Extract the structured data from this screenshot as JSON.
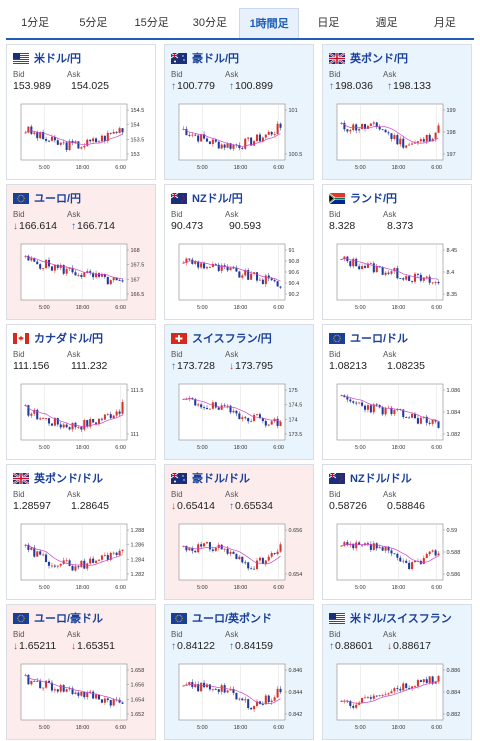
{
  "tabs": [
    {
      "label": "1分足",
      "active": false
    },
    {
      "label": "5分足",
      "active": false
    },
    {
      "label": "15分足",
      "active": false
    },
    {
      "label": "30分足",
      "active": false
    },
    {
      "label": "1時間足",
      "active": true
    },
    {
      "label": "日足",
      "active": false
    },
    {
      "label": "週足",
      "active": false
    },
    {
      "label": "月足",
      "active": false
    }
  ],
  "labels": {
    "bid": "Bid",
    "ask": "Ask"
  },
  "colors": {
    "up": "#1f66c9",
    "down": "#d9342b",
    "candle_up": "#d9342b",
    "candle_down": "#1e3a9a",
    "ma": "#cc44cc"
  },
  "cards": [
    {
      "name": "米ドル/円",
      "flag": "us-flag-icon",
      "bg": "white",
      "bid": "153.989",
      "ask": "154.025",
      "bid_dir": "",
      "ask_dir": "",
      "y_ticks": [
        "154.5",
        "154",
        "153.5",
        "153"
      ],
      "x_ticks": [
        "5:00",
        "18:00",
        "6:00"
      ],
      "trend": "dip-mid",
      "seed": 3
    },
    {
      "name": "豪ドル/円",
      "flag": "au-flag-icon",
      "bg": "blue",
      "bid": "100.779",
      "ask": "100.899",
      "bid_dir": "up",
      "ask_dir": "up",
      "y_ticks": [
        "101",
        "100.5"
      ],
      "x_ticks": [
        "5:00",
        "18:00",
        "6:00"
      ],
      "trend": "dip-mid",
      "seed": 7
    },
    {
      "name": "英ポンド/円",
      "flag": "gb-flag-icon",
      "bg": "blue",
      "bid": "198.036",
      "ask": "198.133",
      "bid_dir": "up",
      "ask_dir": "up",
      "y_ticks": [
        "199",
        "198",
        "197"
      ],
      "x_ticks": [
        "5:00",
        "18:00",
        "6:00"
      ],
      "trend": "dip-late",
      "seed": 11
    },
    {
      "name": "ユーロ/円",
      "flag": "eu-flag-icon",
      "bg": "pink",
      "bid": "166.614",
      "ask": "166.714",
      "bid_dir": "down",
      "ask_dir": "up",
      "y_ticks": [
        "168",
        "167.5",
        "167",
        "166.5"
      ],
      "x_ticks": [
        "5:00",
        "18:00",
        "6:00"
      ],
      "trend": "down",
      "seed": 5
    },
    {
      "name": "NZドル/円",
      "flag": "nz-flag-icon",
      "bg": "white",
      "bid": "90.473",
      "ask": "90.593",
      "bid_dir": "",
      "ask_dir": "",
      "y_ticks": [
        "91",
        "90.8",
        "90.6",
        "90.4",
        "90.2"
      ],
      "x_ticks": [
        "5:00",
        "18:00",
        "6:00"
      ],
      "trend": "down",
      "seed": 9
    },
    {
      "name": "ランド/円",
      "flag": "za-flag-icon",
      "bg": "white",
      "bid": "8.328",
      "ask": "8.373",
      "bid_dir": "",
      "ask_dir": "",
      "y_ticks": [
        "8.45",
        "8.4",
        "8.35"
      ],
      "x_ticks": [
        "5:00",
        "18:00",
        "6:00"
      ],
      "trend": "down",
      "seed": 13
    },
    {
      "name": "カナダドル/円",
      "flag": "ca-flag-icon",
      "bg": "white",
      "bid": "111.156",
      "ask": "111.232",
      "bid_dir": "",
      "ask_dir": "",
      "y_ticks": [
        "111.5",
        "111"
      ],
      "x_ticks": [
        "5:00",
        "18:00",
        "6:00"
      ],
      "trend": "dip-mid",
      "seed": 17
    },
    {
      "name": "スイスフラン/円",
      "flag": "ch-flag-icon",
      "bg": "blue",
      "bid": "173.728",
      "ask": "173.795",
      "bid_dir": "up",
      "ask_dir": "down",
      "y_ticks": [
        "175",
        "174.5",
        "174",
        "173.5"
      ],
      "x_ticks": [
        "5:00",
        "18:00",
        "6:00"
      ],
      "trend": "down",
      "seed": 19
    },
    {
      "name": "ユーロ/ドル",
      "flag": "eu-flag-icon",
      "bg": "white",
      "bid": "1.08213",
      "ask": "1.08235",
      "bid_dir": "",
      "ask_dir": "",
      "y_ticks": [
        "1.086",
        "1.084",
        "1.082"
      ],
      "x_ticks": [
        "5:00",
        "18:00",
        "6:00"
      ],
      "trend": "down",
      "seed": 23
    },
    {
      "name": "英ポンド/ドル",
      "flag": "gb-flag-icon",
      "bg": "white",
      "bid": "1.28597",
      "ask": "1.28645",
      "bid_dir": "",
      "ask_dir": "",
      "y_ticks": [
        "1.288",
        "1.286",
        "1.284",
        "1.282"
      ],
      "x_ticks": [
        "5:00",
        "18:00",
        "6:00"
      ],
      "trend": "dip-mid",
      "seed": 29
    },
    {
      "name": "豪ドル/ドル",
      "flag": "au-flag-icon",
      "bg": "pink",
      "bid": "0.65414",
      "ask": "0.65534",
      "bid_dir": "down",
      "ask_dir": "up",
      "y_ticks": [
        "0.656",
        "0.654"
      ],
      "x_ticks": [
        "5:00",
        "18:00",
        "6:00"
      ],
      "trend": "dip-late",
      "seed": 31
    },
    {
      "name": "NZドル/ドル",
      "flag": "nz-flag-icon",
      "bg": "white",
      "bid": "0.58726",
      "ask": "0.58846",
      "bid_dir": "",
      "ask_dir": "",
      "y_ticks": [
        "0.59",
        "0.588",
        "0.586"
      ],
      "x_ticks": [
        "5:00",
        "18:00",
        "6:00"
      ],
      "trend": "dip-late",
      "seed": 37
    },
    {
      "name": "ユーロ/豪ドル",
      "flag": "eu-flag-icon",
      "bg": "pink",
      "bid": "1.65211",
      "ask": "1.65351",
      "bid_dir": "down",
      "ask_dir": "down",
      "y_ticks": [
        "1.658",
        "1.656",
        "1.654",
        "1.652"
      ],
      "x_ticks": [
        "5:00",
        "18:00",
        "6:00"
      ],
      "trend": "down",
      "seed": 41
    },
    {
      "name": "ユーロ/英ポンド",
      "flag": "eu-flag-icon",
      "bg": "blue",
      "bid": "0.84122",
      "ask": "0.84159",
      "bid_dir": "up",
      "ask_dir": "up",
      "y_ticks": [
        "0.846",
        "0.844",
        "0.842"
      ],
      "x_ticks": [
        "5:00",
        "18:00",
        "6:00"
      ],
      "trend": "dip-late",
      "seed": 43
    },
    {
      "name": "米ドル/スイスフラン",
      "flag": "us-flag-icon",
      "bg": "blue",
      "bid": "0.88601",
      "ask": "0.88617",
      "bid_dir": "up",
      "ask_dir": "down",
      "y_ticks": [
        "0.886",
        "0.884",
        "0.882"
      ],
      "x_ticks": [
        "5:00",
        "18:00",
        "6:00"
      ],
      "trend": "up",
      "seed": 47
    }
  ]
}
